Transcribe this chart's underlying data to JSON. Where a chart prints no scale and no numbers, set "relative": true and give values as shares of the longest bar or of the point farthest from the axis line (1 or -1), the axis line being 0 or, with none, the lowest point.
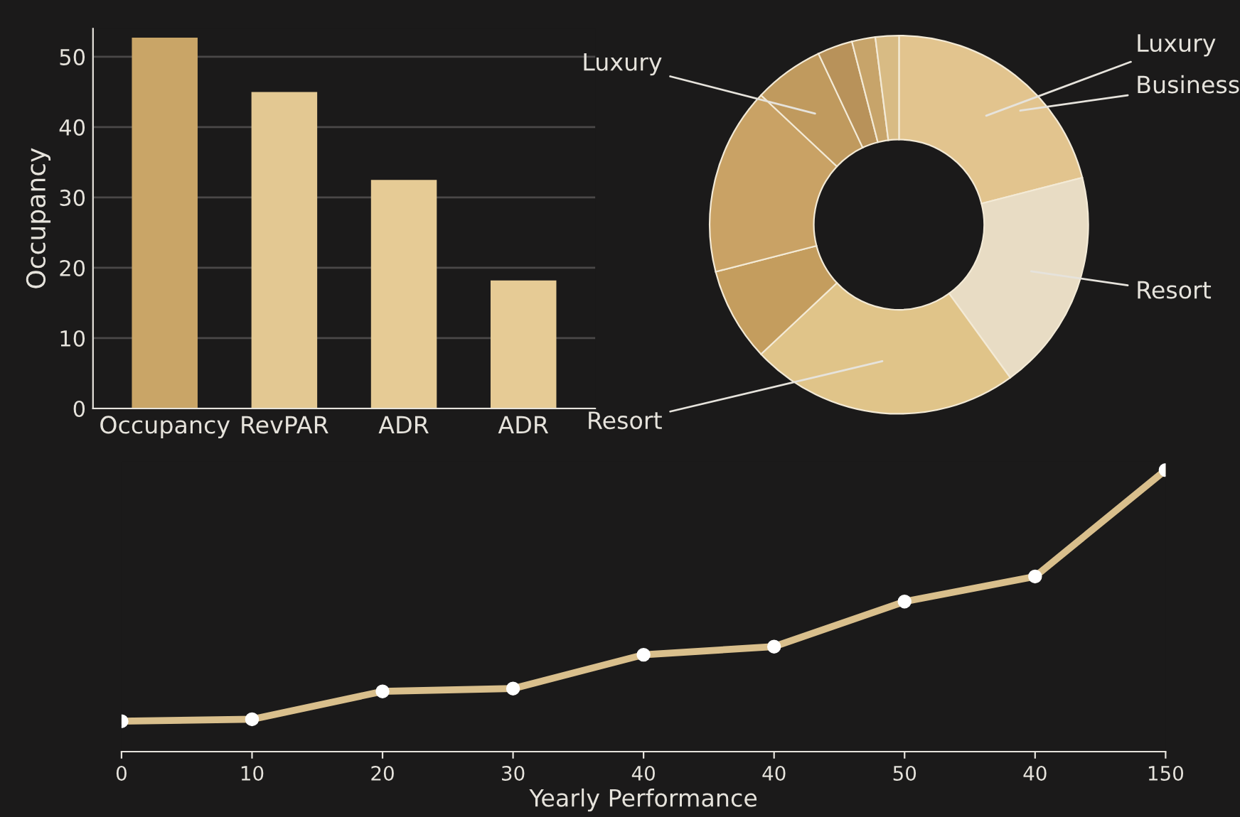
{
  "chart_data": [
    {
      "type": "bar",
      "ylabel": "Occupancy",
      "categories": [
        "Occupancy",
        "RevPAR",
        "ADR",
        "ADR"
      ],
      "values": [
        52.7,
        45,
        32.5,
        18.2
      ],
      "colors": [
        "#c9a567",
        "#e3c892",
        "#e6cb95",
        "#e6cb95"
      ],
      "ylim": [
        0,
        54
      ],
      "yticks": [
        0,
        10,
        20,
        30,
        40,
        50
      ],
      "grid": "y"
    },
    {
      "type": "donut",
      "categories": [
        "Luxury",
        "Resort",
        "Resort",
        null,
        null,
        "Luxury",
        null,
        null,
        null
      ],
      "values": [
        21,
        19,
        23,
        8,
        16,
        6,
        3,
        2,
        2
      ],
      "colors": [
        "#e2c48e",
        "#e8dcc4",
        "#e0c489",
        "#c49d5e",
        "#c9a265",
        "#c09a5e",
        "#b8925a",
        "#c7a46a",
        "#d8bb84"
      ],
      "annotations": [
        "Business"
      ]
    },
    {
      "type": "line",
      "xlabel": "Yearly Performance",
      "categories": [
        "0",
        "10",
        "20",
        "30",
        "40",
        "40",
        "50",
        "40",
        "150"
      ],
      "relative": true,
      "marker": "circle",
      "series": [
        {
          "color": "#d9bf8c",
          "values": [
            0.108,
            0.115,
            0.214,
            0.224,
            0.344,
            0.373,
            0.533,
            0.622,
            1
          ]
        }
      ]
    }
  ]
}
